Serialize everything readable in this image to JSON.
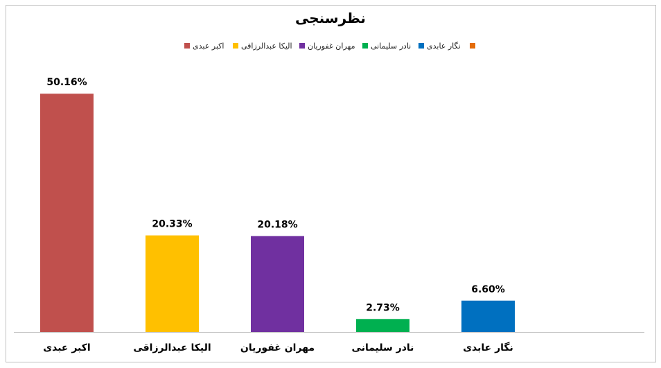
{
  "chart_data": {
    "type": "bar",
    "title": "نظرسنجی",
    "xlabel": "",
    "ylabel": "",
    "ylim": [
      0,
      55
    ],
    "grid": false,
    "legend_placement": "top",
    "categories": [
      "اکبر عبدی",
      "الیکا عبدالرزاقی",
      "مهران غفوریان",
      "نادر سلیمانی",
      "نگار عابدی"
    ],
    "values": [
      50.16,
      20.33,
      20.18,
      2.73,
      6.6
    ],
    "value_labels": [
      "50.16%",
      "20.33%",
      "20.18%",
      "2.73%",
      "6.60%"
    ],
    "colors": [
      "#C0504D",
      "#FFC000",
      "#7030A0",
      "#00B050",
      "#0070C0"
    ],
    "legend": [
      {
        "label": "اکبر عبدی",
        "color": "#C0504D"
      },
      {
        "label": "الیکا عبدالرزاقی",
        "color": "#FFC000"
      },
      {
        "label": "مهران غفوریان",
        "color": "#7030A0"
      },
      {
        "label": "نادر سلیمانی",
        "color": "#00B050"
      },
      {
        "label": "نگار عابدی",
        "color": "#0070C0"
      },
      {
        "label": "",
        "color": "#E46C0A"
      }
    ]
  }
}
